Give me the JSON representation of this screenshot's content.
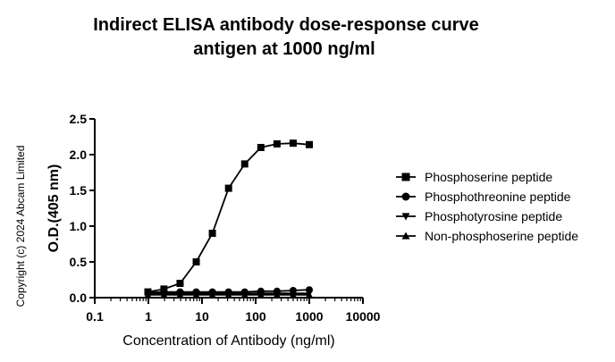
{
  "chart_data": {
    "type": "line",
    "title": "Indirect ELISA antibody dose-response curve",
    "subtitle": "antigen at 1000 ng/ml",
    "xlabel": "Concentration of Antibody (ng/ml)",
    "ylabel": "O.D.(405 nm)",
    "xscale": "log",
    "xlim": [
      0.1,
      10000
    ],
    "ylim": [
      0,
      2.5
    ],
    "xticks": [
      0.1,
      1,
      10,
      100,
      1000,
      10000
    ],
    "xtick_labels": [
      "0.1",
      "1",
      "10",
      "100",
      "1000",
      "10000"
    ],
    "yticks": [
      0,
      0.5,
      1,
      1.5,
      2,
      2.5
    ],
    "ytick_labels": [
      "0.0",
      "0.5",
      "1.0",
      "1.5",
      "2.0",
      "2.5"
    ],
    "grid": false,
    "legend_position": "right",
    "series": [
      {
        "name": "Phosphoserine peptide",
        "marker": "square",
        "x": [
          0.98,
          1.95,
          3.9,
          7.8,
          15.6,
          31.25,
          62.5,
          125,
          250,
          500,
          1000
        ],
        "y": [
          0.08,
          0.12,
          0.2,
          0.5,
          0.9,
          1.53,
          1.87,
          2.1,
          2.15,
          2.16,
          2.14
        ]
      },
      {
        "name": "Phosphothreonine peptide",
        "marker": "circle",
        "x": [
          0.98,
          1.95,
          3.9,
          7.8,
          15.6,
          31.25,
          62.5,
          125,
          250,
          500,
          1000
        ],
        "y": [
          0.07,
          0.08,
          0.08,
          0.08,
          0.08,
          0.08,
          0.08,
          0.09,
          0.09,
          0.1,
          0.11
        ]
      },
      {
        "name": "Phosphotyrosine peptide",
        "marker": "triangle-down",
        "x": [
          0.98,
          1.95,
          3.9,
          7.8,
          15.6,
          31.25,
          62.5,
          125,
          250,
          500,
          1000
        ],
        "y": [
          0.06,
          0.06,
          0.06,
          0.06,
          0.06,
          0.06,
          0.06,
          0.06,
          0.06,
          0.06,
          0.06
        ]
      },
      {
        "name": "Non-phosphoserine peptide",
        "marker": "triangle-up",
        "x": [
          0.98,
          1.95,
          3.9,
          7.8,
          15.6,
          31.25,
          62.5,
          125,
          250,
          500,
          1000
        ],
        "y": [
          0.04,
          0.04,
          0.04,
          0.04,
          0.04,
          0.04,
          0.04,
          0.04,
          0.04,
          0.04,
          0.04
        ]
      }
    ],
    "color": "#000000"
  },
  "copyright": "Copyright (c) 2024 Abcam Limited"
}
